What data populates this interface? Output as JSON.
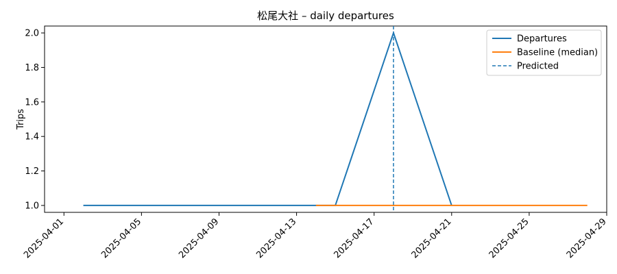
{
  "chart_data": {
    "type": "line",
    "title": "松尾大社 – daily departures",
    "xlabel": "",
    "ylabel": "Trips",
    "x_range": [
      "2025-03-31",
      "2025-04-29"
    ],
    "ylim": [
      0.96,
      2.04
    ],
    "x_ticks": [
      "2025-04-01",
      "2025-04-05",
      "2025-04-09",
      "2025-04-13",
      "2025-04-17",
      "2025-04-21",
      "2025-04-25",
      "2025-04-29"
    ],
    "y_ticks": [
      1.0,
      1.2,
      1.4,
      1.6,
      1.8,
      2.0
    ],
    "y_tick_labels": [
      "1.0",
      "1.2",
      "1.4",
      "1.6",
      "1.8",
      "2.0"
    ],
    "grid": false,
    "legend_position": "top-right",
    "series": [
      {
        "name": "Departures",
        "color": "#1f77b4",
        "style": "solid",
        "x": [
          "2025-04-02",
          "2025-04-15",
          "2025-04-18",
          "2025-04-21"
        ],
        "y": [
          1,
          1,
          2,
          1
        ]
      },
      {
        "name": "Baseline (median)",
        "color": "#ff7f0e",
        "style": "solid",
        "x": [
          "2025-04-14",
          "2025-04-28"
        ],
        "y": [
          1,
          1
        ]
      }
    ],
    "vlines": [
      {
        "name": "Predicted",
        "color": "#1f77b4",
        "style": "dashed",
        "x": "2025-04-18"
      }
    ]
  }
}
